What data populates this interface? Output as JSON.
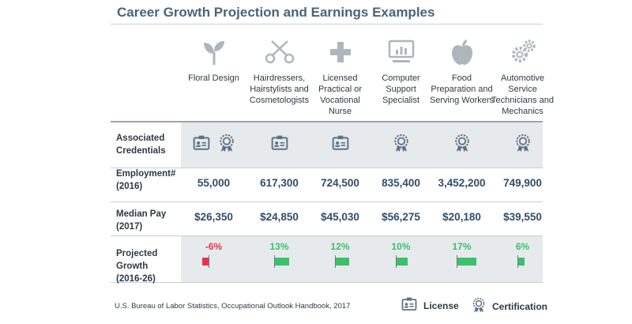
{
  "title": "Career Growth Projection and Earnings Examples",
  "occupations": [
    {
      "name": "Floral Design",
      "icon": "plant-sprout-icon",
      "credentials": [
        "license",
        "certification"
      ],
      "employment": "55,000",
      "pay": "$26,350",
      "growth_label": "-6%",
      "growth": -6
    },
    {
      "name": "Hairdressers, Hairstylists and Cosmetologists",
      "icon": "scissors-icon",
      "credentials": [
        "license"
      ],
      "employment": "617,300",
      "pay": "$24,850",
      "growth_label": "13%",
      "growth": 13
    },
    {
      "name": "Licensed Practical or Vocational Nurse",
      "icon": "medical-cross-icon",
      "credentials": [
        "license"
      ],
      "employment": "724,500",
      "pay": "$45,030",
      "growth_label": "12%",
      "growth": 12
    },
    {
      "name": "Computer Support Specialist",
      "icon": "computer-monitor-icon",
      "credentials": [
        "certification"
      ],
      "employment": "835,400",
      "pay": "$56,275",
      "growth_label": "10%",
      "growth": 10
    },
    {
      "name": "Food Preparation and Serving Workers",
      "icon": "apple-icon",
      "credentials": [
        "certification"
      ],
      "employment": "3,452,200",
      "pay": "$20,180",
      "growth_label": "17%",
      "growth": 17
    },
    {
      "name": "Automotive Service Technicians and Mechanics",
      "icon": "gears-icon",
      "credentials": [
        "certification"
      ],
      "employment": "749,900",
      "pay": "$39,550",
      "growth_label": "6%",
      "growth": 6
    }
  ],
  "rows": {
    "credentials": "Associated Credentials",
    "employment": "Employment# (2016)",
    "pay": "Median Pay (2017)",
    "growth": "Projected Growth (2016-26)"
  },
  "source": "U.S. Bureau of Labor Statistics, Occupational Outlook Handbook, 2017",
  "legend": {
    "license": "License",
    "certification": "Certification"
  },
  "colors": {
    "title": "#4b6478",
    "value": "#2e4e6a",
    "positive": "#3cc06a",
    "negative": "#e8334a",
    "band": "#e7eaed",
    "icon": "#aeb6bd",
    "badge": "#5e7285"
  }
}
